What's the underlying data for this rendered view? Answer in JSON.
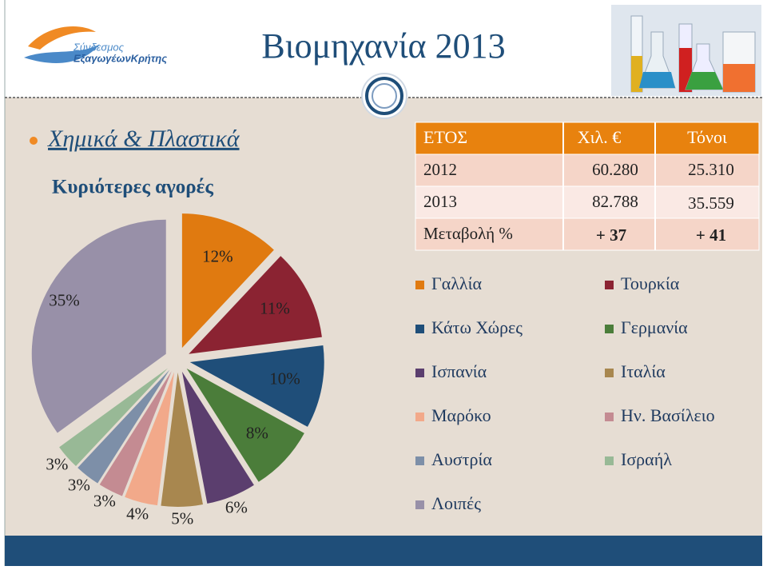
{
  "header": {
    "title": "Βιομηχανία 2013",
    "logo": [
      "Σύνδεσμος",
      "ΕξαγωγέωνΚρήτης"
    ]
  },
  "bullet": "Χημικά & Πλαστικά",
  "subtitle": "Κυριότερες αγορές",
  "table": {
    "columns": [
      "ΕΤΟΣ",
      "Χιλ. €",
      "Τόνοι"
    ],
    "rows": [
      [
        "2012",
        "60.280",
        "25.310"
      ],
      [
        "2013",
        "82.788",
        "35.559"
      ],
      [
        "Μεταβολή %",
        "+ 37",
        "+ 41"
      ]
    ]
  },
  "chart_data": {
    "type": "pie",
    "categories": [
      "Γαλλία",
      "Τουρκία",
      "Κάτω Χώρες",
      "Γερμανία",
      "Ισπανία",
      "Ιταλία",
      "Μαρόκο",
      "Ην. Βασίλειο",
      "Αυστρία",
      "Ισραήλ",
      "Λοιπές"
    ],
    "values": [
      12,
      11,
      10,
      8,
      6,
      5,
      4,
      3,
      3,
      3,
      35
    ],
    "value_labels": [
      "12%",
      "11%",
      "10%",
      "8%",
      "6%",
      "5%",
      "4%",
      "3%",
      "3%",
      "3%",
      "35%"
    ],
    "colors": [
      "#e07a10",
      "#8b2332",
      "#1f4e79",
      "#4b7d3a",
      "#5b3e6e",
      "#a8874f",
      "#f2a98a",
      "#c48b92",
      "#7d8fa8",
      "#98b996",
      "#9890a8"
    ]
  }
}
